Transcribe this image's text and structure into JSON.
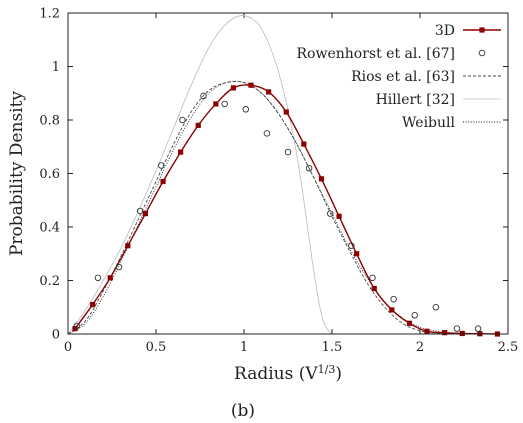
{
  "chart_data": {
    "type": "line",
    "xlabel": "Radius",
    "xlabel_unit_base": "V",
    "xlabel_unit_exp": "1/3",
    "ylabel": "Probability Density",
    "xlim": [
      0,
      2.5
    ],
    "ylim": [
      0,
      1.2
    ],
    "xticks": [
      "0",
      "0.5",
      "1",
      "1.5",
      "2",
      "2.5"
    ],
    "yticks": [
      "0",
      "0.2",
      "0.4",
      "0.6",
      "0.8",
      "1",
      "1.2"
    ],
    "grid": false,
    "legend_position": "top-right",
    "caption": "(b)",
    "series": [
      {
        "name": "3D",
        "style": "solid-square",
        "color": "#8b0000",
        "x": [
          0.04,
          0.14,
          0.24,
          0.34,
          0.44,
          0.54,
          0.64,
          0.74,
          0.84,
          0.94,
          1.04,
          1.14,
          1.24,
          1.34,
          1.44,
          1.54,
          1.64,
          1.74,
          1.84,
          1.94,
          2.04,
          2.14,
          2.24,
          2.34,
          2.44
        ],
        "y": [
          0.02,
          0.11,
          0.21,
          0.33,
          0.45,
          0.57,
          0.68,
          0.78,
          0.86,
          0.92,
          0.93,
          0.905,
          0.83,
          0.71,
          0.58,
          0.44,
          0.3,
          0.17,
          0.09,
          0.04,
          0.01,
          0.005,
          0.002,
          0.001,
          0.0
        ]
      },
      {
        "name": "Rowenhorst et al. [67]",
        "style": "open-circle",
        "color": "#333333",
        "x": [
          0.05,
          0.17,
          0.29,
          0.41,
          0.53,
          0.65,
          0.77,
          0.89,
          1.01,
          1.13,
          1.25,
          1.37,
          1.49,
          1.61,
          1.73,
          1.85,
          1.97,
          2.09,
          2.21,
          2.33
        ],
        "y": [
          0.03,
          0.21,
          0.25,
          0.46,
          0.63,
          0.8,
          0.89,
          0.86,
          0.84,
          0.75,
          0.68,
          0.62,
          0.45,
          0.33,
          0.21,
          0.13,
          0.07,
          0.1,
          0.02,
          0.02
        ]
      },
      {
        "name": "Rios et al. [63]",
        "style": "dashed",
        "color": "#444444",
        "x": [
          0.0,
          0.1,
          0.2,
          0.3,
          0.4,
          0.5,
          0.6,
          0.7,
          0.8,
          0.9,
          1.0,
          1.1,
          1.2,
          1.3,
          1.4,
          1.5,
          1.6,
          1.7,
          1.8,
          1.9,
          2.0,
          2.1,
          2.2,
          2.3,
          2.4,
          2.45
        ],
        "y": [
          0.0,
          0.05,
          0.16,
          0.29,
          0.43,
          0.57,
          0.71,
          0.83,
          0.91,
          0.94,
          0.94,
          0.9,
          0.82,
          0.71,
          0.58,
          0.44,
          0.31,
          0.19,
          0.1,
          0.04,
          0.012,
          0.003,
          0.001,
          0.0,
          0.0,
          0.0
        ]
      },
      {
        "name": "Hillert [32]",
        "style": "solid-light",
        "color": "#bbbbbb",
        "x": [
          0.0,
          0.1,
          0.2,
          0.3,
          0.4,
          0.5,
          0.6,
          0.7,
          0.8,
          0.9,
          1.0,
          1.1,
          1.2,
          1.3,
          1.4,
          1.45,
          1.5
        ],
        "y": [
          0.0,
          0.09,
          0.2,
          0.32,
          0.46,
          0.61,
          0.77,
          0.93,
          1.07,
          1.16,
          1.19,
          1.14,
          0.97,
          0.67,
          0.22,
          0.05,
          0.0
        ]
      },
      {
        "name": "Weibull",
        "style": "dotted",
        "color": "#222222",
        "x": [
          0.0,
          0.1,
          0.2,
          0.3,
          0.4,
          0.5,
          0.6,
          0.7,
          0.8,
          0.9,
          1.0,
          1.1,
          1.2,
          1.3,
          1.4,
          1.5,
          1.6,
          1.7,
          1.8,
          1.9,
          2.0,
          2.1,
          2.2,
          2.3,
          2.4,
          2.45
        ],
        "y": [
          0.0,
          0.04,
          0.14,
          0.27,
          0.41,
          0.55,
          0.69,
          0.81,
          0.9,
          0.94,
          0.94,
          0.9,
          0.82,
          0.71,
          0.58,
          0.45,
          0.32,
          0.21,
          0.12,
          0.06,
          0.025,
          0.01,
          0.003,
          0.001,
          0.0,
          0.0
        ]
      }
    ]
  }
}
